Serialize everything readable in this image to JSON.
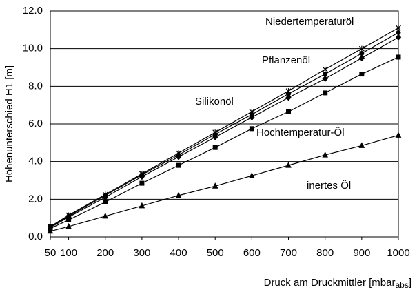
{
  "chart_data": {
    "type": "line",
    "y_label": "Höhenunterschied H1 [m]",
    "x_label": "Druck am Druckmittler [mbar",
    "x_label_sub": "abs",
    "x_label_end": "]",
    "x": [
      50,
      100,
      200,
      300,
      400,
      500,
      600,
      700,
      800,
      900,
      1000
    ],
    "xlim": [
      50,
      1000
    ],
    "xticks": [
      50,
      100,
      200,
      300,
      400,
      500,
      600,
      700,
      800,
      900,
      1000
    ],
    "ylim": [
      0,
      12
    ],
    "yticks": [
      {
        "value": 0,
        "label": "0.0"
      },
      {
        "value": 2,
        "label": "2.0"
      },
      {
        "value": 4,
        "label": "4.0"
      },
      {
        "value": 6,
        "label": "6.0"
      },
      {
        "value": 8,
        "label": "8.0"
      },
      {
        "value": 10,
        "label": "10.0"
      },
      {
        "value": 12,
        "label": "12.0"
      }
    ],
    "grid": true,
    "series": [
      {
        "name": "Niedertemperaturöl",
        "color": "#000000",
        "marker": "star",
        "values": [
          0.55,
          1.15,
          2.25,
          3.35,
          4.45,
          5.55,
          6.65,
          7.75,
          8.9,
          10.0,
          11.1
        ]
      },
      {
        "name": "Pflanzenöl",
        "color": "#000000",
        "marker": "circle",
        "values": [
          0.55,
          1.1,
          2.2,
          3.3,
          4.35,
          5.45,
          6.5,
          7.6,
          8.65,
          9.75,
          10.85
        ]
      },
      {
        "name": "Silikonöl",
        "color": "#000000",
        "marker": "diamond",
        "values": [
          0.5,
          1.05,
          2.1,
          3.2,
          4.25,
          5.3,
          6.35,
          7.4,
          8.4,
          9.5,
          10.6
        ]
      },
      {
        "name": "Hochtemperatur-Öl",
        "color": "#000000",
        "marker": "square",
        "values": [
          0.45,
          0.9,
          1.85,
          2.85,
          3.8,
          4.75,
          5.75,
          6.65,
          7.65,
          8.65,
          9.55
        ]
      },
      {
        "name": "inertes Öl",
        "color": "#000000",
        "marker": "triangle",
        "values": [
          0.3,
          0.55,
          1.1,
          1.65,
          2.2,
          2.7,
          3.25,
          3.8,
          4.35,
          4.85,
          5.4
        ]
      }
    ]
  }
}
